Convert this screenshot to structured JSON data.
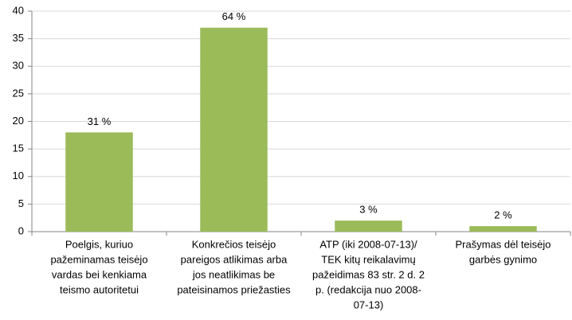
{
  "chart_data": {
    "type": "bar",
    "categories": [
      [
        "Poelgis, kuriuo",
        "pažeminamas teisėjo",
        "vardas bei kenkiama",
        "teismo autoritetui"
      ],
      [
        "Konkrečios teisėjo",
        "pareigos atlikimas arba",
        "jos neatlikimas be",
        "pateisinamos priežasties"
      ],
      [
        "ATP (iki 2008-07-13)/",
        "TEK kitų reikalavimų",
        "pažeidimas 83 str. 2 d. 2",
        "p. (redakcija nuo 2008-",
        "07-13)"
      ],
      [
        "Prašymas dėl teisėjo",
        "garbės gynimo"
      ]
    ],
    "values": [
      18,
      37,
      2,
      1
    ],
    "annotations": [
      "31 %",
      "64 %",
      "3 %",
      "2 %"
    ],
    "color": "#9bbb59",
    "ylim": [
      0,
      40
    ],
    "yticks": [
      0,
      5,
      10,
      15,
      20,
      25,
      30,
      35,
      40
    ],
    "grid": true
  }
}
